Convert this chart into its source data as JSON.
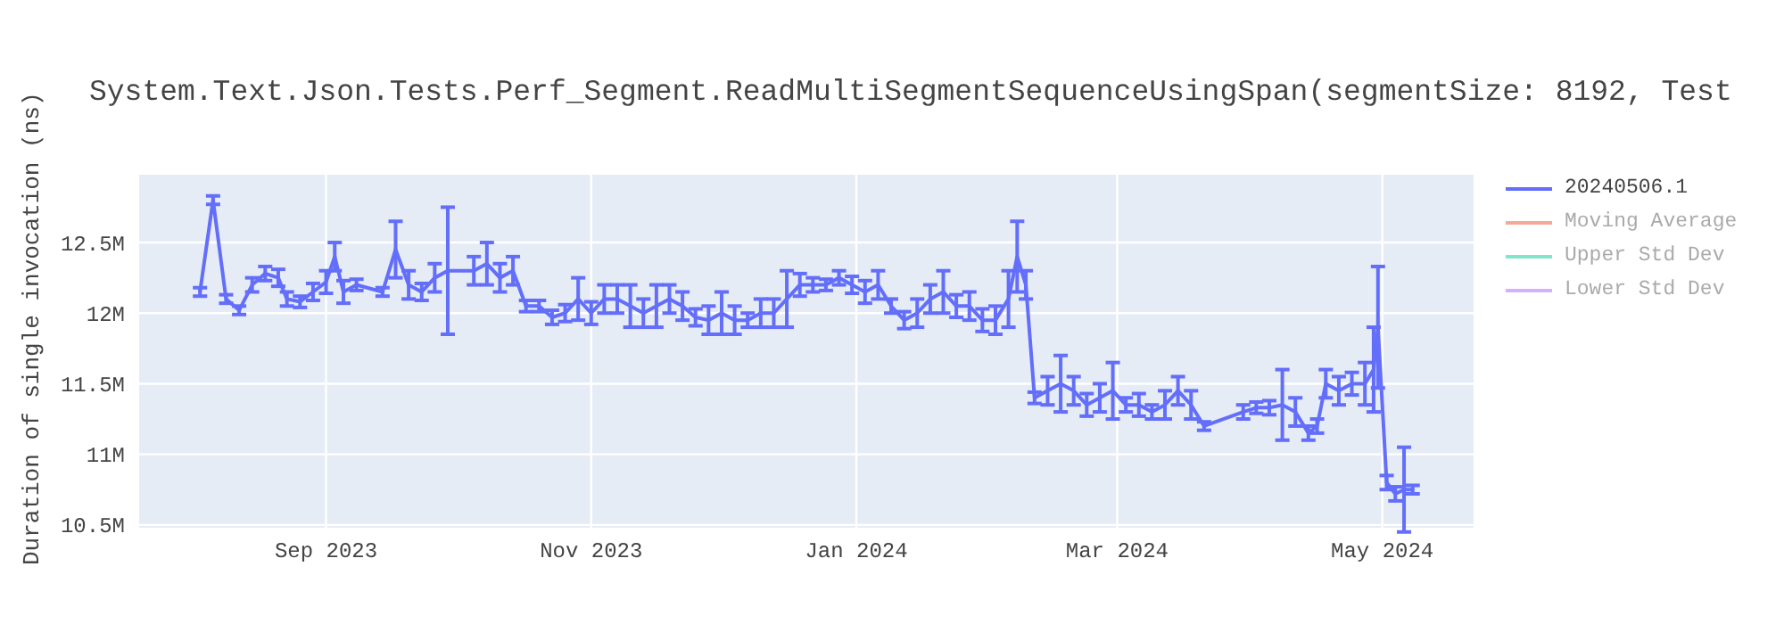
{
  "chart_data": {
    "type": "line",
    "title": "System.Text.Json.Tests.Perf_Segment.ReadMultiSegmentSequenceUsingSpan(segmentSize: 8192, Test",
    "ylabel": "Duration of single invocation (ns)",
    "x": [
      "2023-08-03",
      "2023-08-06",
      "2023-08-09",
      "2023-08-12",
      "2023-08-15",
      "2023-08-18",
      "2023-08-21",
      "2023-08-23",
      "2023-08-26",
      "2023-08-29",
      "2023-09-01",
      "2023-09-03",
      "2023-09-05",
      "2023-09-08",
      "2023-09-14",
      "2023-09-17",
      "2023-09-20",
      "2023-09-23",
      "2023-09-26",
      "2023-09-29",
      "2023-10-05",
      "2023-10-08",
      "2023-10-11",
      "2023-10-14",
      "2023-10-17",
      "2023-10-20",
      "2023-10-23",
      "2023-10-26",
      "2023-10-29",
      "2023-11-01",
      "2023-11-04",
      "2023-11-07",
      "2023-11-10",
      "2023-11-13",
      "2023-11-16",
      "2023-11-19",
      "2023-11-22",
      "2023-11-25",
      "2023-11-28",
      "2023-12-01",
      "2023-12-04",
      "2023-12-07",
      "2023-12-10",
      "2023-12-13",
      "2023-12-16",
      "2023-12-19",
      "2023-12-22",
      "2023-12-25",
      "2023-12-28",
      "2023-12-31",
      "2024-01-03",
      "2024-01-06",
      "2024-01-09",
      "2024-01-12",
      "2024-01-15",
      "2024-01-18",
      "2024-01-21",
      "2024-01-24",
      "2024-01-27",
      "2024-01-30",
      "2024-02-02",
      "2024-02-05",
      "2024-02-07",
      "2024-02-09",
      "2024-02-11",
      "2024-02-14",
      "2024-02-17",
      "2024-02-20",
      "2024-02-23",
      "2024-02-26",
      "2024-02-29",
      "2024-03-03",
      "2024-03-06",
      "2024-03-09",
      "2024-03-12",
      "2024-03-15",
      "2024-03-18",
      "2024-03-21",
      "2024-03-30",
      "2024-04-02",
      "2024-04-05",
      "2024-04-08",
      "2024-04-11",
      "2024-04-14",
      "2024-04-16",
      "2024-04-18",
      "2024-04-21",
      "2024-04-24",
      "2024-04-27",
      "2024-04-29",
      "2024-04-30",
      "2024-05-02",
      "2024-05-04",
      "2024-05-06",
      "2024-05-08"
    ],
    "series": [
      {
        "name": "20240506.1",
        "color": "#636efa",
        "values": [
          12150000,
          12800000,
          12100000,
          12020000,
          12200000,
          12280000,
          12250000,
          12100000,
          12080000,
          12150000,
          12220000,
          12400000,
          12150000,
          12200000,
          12150000,
          12450000,
          12200000,
          12150000,
          12250000,
          12300000,
          12300000,
          12350000,
          12250000,
          12300000,
          12050000,
          12050000,
          11970000,
          12000000,
          12100000,
          12000000,
          12100000,
          12100000,
          12050000,
          12000000,
          12050000,
          12100000,
          12050000,
          11970000,
          11950000,
          12000000,
          11950000,
          11950000,
          12000000,
          12000000,
          12100000,
          12200000,
          12200000,
          12200000,
          12250000,
          12200000,
          12150000,
          12200000,
          12050000,
          11950000,
          12000000,
          12100000,
          12150000,
          12050000,
          12050000,
          11950000,
          11950000,
          12100000,
          12400000,
          12200000,
          11400000,
          11450000,
          11500000,
          11450000,
          11350000,
          11400000,
          11450000,
          11350000,
          11350000,
          11300000,
          11350000,
          11450000,
          11350000,
          11200000,
          11300000,
          11330000,
          11330000,
          11350000,
          11300000,
          11150000,
          11200000,
          11500000,
          11450000,
          11500000,
          11500000,
          11600000,
          11900000,
          10800000,
          10720000,
          10750000,
          10750000
        ],
        "errors": [
          30000,
          30000,
          30000,
          30000,
          50000,
          50000,
          60000,
          50000,
          40000,
          60000,
          80000,
          100000,
          80000,
          40000,
          30000,
          200000,
          100000,
          60000,
          100000,
          450000,
          100000,
          150000,
          100000,
          100000,
          40000,
          40000,
          50000,
          60000,
          150000,
          80000,
          100000,
          100000,
          150000,
          100000,
          150000,
          100000,
          100000,
          60000,
          100000,
          150000,
          100000,
          50000,
          100000,
          100000,
          200000,
          80000,
          50000,
          40000,
          50000,
          60000,
          80000,
          100000,
          50000,
          60000,
          100000,
          100000,
          150000,
          80000,
          100000,
          80000,
          100000,
          200000,
          250000,
          100000,
          40000,
          100000,
          200000,
          100000,
          80000,
          100000,
          200000,
          50000,
          80000,
          50000,
          100000,
          100000,
          100000,
          30000,
          50000,
          40000,
          50000,
          250000,
          100000,
          50000,
          50000,
          100000,
          100000,
          80000,
          150000,
          300000,
          430000,
          50000,
          50000,
          300000,
          30000
        ]
      },
      {
        "name": "Moving Average",
        "color": "#f5a898",
        "values": [
          null,
          null,
          null,
          null,
          null,
          null,
          null,
          null,
          null,
          null,
          null,
          null,
          null,
          null,
          null,
          null,
          null,
          null,
          null,
          null,
          null,
          null,
          null,
          null,
          null,
          null,
          null,
          null,
          null,
          null,
          null,
          null,
          null,
          null,
          null,
          null,
          null,
          null,
          null,
          null,
          null,
          null,
          null,
          null,
          null,
          null,
          null,
          null,
          null,
          null,
          null,
          null,
          null,
          null,
          null,
          null,
          null,
          null,
          null,
          null,
          null,
          null,
          null,
          null,
          null,
          null,
          null,
          null,
          null,
          null,
          null,
          null,
          null,
          null,
          null,
          null,
          null,
          null,
          null,
          null,
          null,
          null,
          null,
          null,
          null,
          null,
          null,
          null,
          null,
          null,
          null,
          null,
          null,
          null,
          null
        ]
      },
      {
        "name": "Upper Std Dev",
        "color": "#80e5ca",
        "values": [
          null,
          null,
          null,
          null,
          null,
          null,
          null,
          null,
          null,
          null,
          null,
          null,
          null,
          null,
          null,
          null,
          null,
          null,
          null,
          null,
          null,
          null,
          null,
          null,
          null,
          null,
          null,
          null,
          null,
          null,
          null,
          null,
          null,
          null,
          null,
          null,
          null,
          null,
          null,
          null,
          null,
          null,
          null,
          null,
          null,
          null,
          null,
          null,
          null,
          null,
          null,
          null,
          null,
          null,
          null,
          null,
          null,
          null,
          null,
          null,
          null,
          null,
          null,
          null,
          null,
          null,
          null,
          null,
          null,
          null,
          null,
          null,
          null,
          null,
          null,
          null,
          null,
          null,
          null,
          null,
          null,
          null,
          null,
          null,
          null,
          null,
          null,
          null,
          null,
          null,
          null,
          null,
          null,
          null,
          null
        ]
      },
      {
        "name": "Lower Std Dev",
        "color": "#d5b1fc",
        "values": [
          null,
          null,
          null,
          null,
          null,
          null,
          null,
          null,
          null,
          null,
          null,
          null,
          null,
          null,
          null,
          null,
          null,
          null,
          null,
          null,
          null,
          null,
          null,
          null,
          null,
          null,
          null,
          null,
          null,
          null,
          null,
          null,
          null,
          null,
          null,
          null,
          null,
          null,
          null,
          null,
          null,
          null,
          null,
          null,
          null,
          null,
          null,
          null,
          null,
          null,
          null,
          null,
          null,
          null,
          null,
          null,
          null,
          null,
          null,
          null,
          null,
          null,
          null,
          null,
          null,
          null,
          null,
          null,
          null,
          null,
          null,
          null,
          null,
          null,
          null,
          null,
          null,
          null,
          null,
          null,
          null,
          null,
          null,
          null,
          null,
          null,
          null,
          null,
          null,
          null,
          null,
          null,
          null,
          null,
          null
        ]
      }
    ],
    "xlim": [
      "2023-07-20",
      "2024-05-22"
    ],
    "xticks": [
      {
        "value": "2023-09-01",
        "label": "Sep 2023"
      },
      {
        "value": "2023-11-01",
        "label": "Nov 2023"
      },
      {
        "value": "2024-01-01",
        "label": "Jan 2024"
      },
      {
        "value": "2024-03-01",
        "label": "Mar 2024"
      },
      {
        "value": "2024-05-01",
        "label": "May 2024"
      }
    ],
    "ylim": [
      10480000,
      12980000
    ],
    "yticks": [
      {
        "value": 10500000,
        "label": "10.5M"
      },
      {
        "value": 11000000,
        "label": "11M"
      },
      {
        "value": 11500000,
        "label": "11.5M"
      },
      {
        "value": 12000000,
        "label": "12M"
      },
      {
        "value": 12500000,
        "label": "12.5M"
      }
    ],
    "grid": true,
    "legend": "top right",
    "marker": "none",
    "line_style": "solid"
  }
}
